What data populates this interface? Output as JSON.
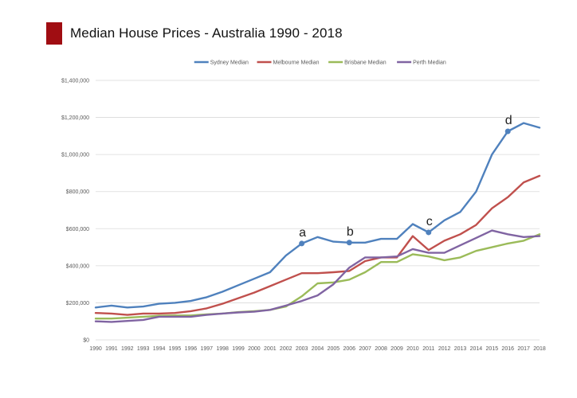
{
  "header": {
    "title": "Median House Prices - Australia 1990 - 2018",
    "accent_color": "#a00d12"
  },
  "chart_data": {
    "type": "line",
    "title": "Median House Prices - Australia 1990 - 2018",
    "xlabel": "",
    "ylabel": "",
    "ylim": [
      0,
      1400000
    ],
    "y_ticks": [
      0,
      200000,
      400000,
      600000,
      800000,
      1000000,
      1200000,
      1400000
    ],
    "y_tick_labels": [
      "$0",
      "$200,000",
      "$400,000",
      "$600,000",
      "$800,000",
      "$1,000,000",
      "$1,200,000",
      "$1,400,000"
    ],
    "grid": true,
    "legend_position": "top",
    "x": [
      "1990",
      "1991",
      "1992",
      "1993",
      "1994",
      "1995",
      "1996",
      "1997",
      "1998",
      "1999",
      "2000",
      "2001",
      "2002",
      "2003",
      "2004",
      "2005",
      "2006",
      "2007",
      "2008",
      "2009",
      "2010",
      "2011",
      "2012",
      "2013",
      "2014",
      "2015",
      "2016",
      "2017",
      "2018"
    ],
    "series": [
      {
        "name": "Sydney Median",
        "color": "#4f81bd",
        "values": [
          175000,
          185000,
          175000,
          180000,
          195000,
          200000,
          210000,
          230000,
          260000,
          295000,
          330000,
          365000,
          455000,
          520000,
          555000,
          530000,
          525000,
          525000,
          545000,
          545000,
          625000,
          580000,
          645000,
          690000,
          800000,
          1000000,
          1125000,
          1170000,
          1145000
        ]
      },
      {
        "name": "Melbourne Median",
        "color": "#c0504d",
        "values": [
          145000,
          142000,
          135000,
          142000,
          142000,
          145000,
          155000,
          170000,
          195000,
          225000,
          255000,
          290000,
          325000,
          360000,
          360000,
          365000,
          372000,
          425000,
          445000,
          445000,
          560000,
          485000,
          535000,
          570000,
          620000,
          710000,
          770000,
          850000,
          885000
        ]
      },
      {
        "name": "Brisbane Median",
        "color": "#9bbb59",
        "values": [
          115000,
          115000,
          120000,
          125000,
          130000,
          132000,
          132000,
          138000,
          142000,
          150000,
          155000,
          162000,
          180000,
          235000,
          305000,
          310000,
          325000,
          365000,
          420000,
          420000,
          462000,
          450000,
          430000,
          445000,
          480000,
          500000,
          520000,
          535000,
          570000
        ]
      },
      {
        "name": "Perth Median",
        "color": "#8064a2",
        "values": [
          100000,
          97000,
          102000,
          108000,
          125000,
          125000,
          125000,
          135000,
          142000,
          148000,
          152000,
          162000,
          185000,
          210000,
          240000,
          300000,
          390000,
          445000,
          445000,
          450000,
          490000,
          470000,
          470000,
          510000,
          550000,
          590000,
          570000,
          555000,
          560000
        ]
      }
    ],
    "annotations": [
      {
        "label": "a",
        "series": "Sydney Median",
        "x": "2003",
        "y": 520000
      },
      {
        "label": "b",
        "series": "Sydney Median",
        "x": "2006",
        "y": 525000
      },
      {
        "label": "c",
        "series": "Sydney Median",
        "x": "2011",
        "y": 580000
      },
      {
        "label": "d",
        "series": "Sydney Median",
        "x": "2016",
        "y": 1125000
      }
    ]
  }
}
